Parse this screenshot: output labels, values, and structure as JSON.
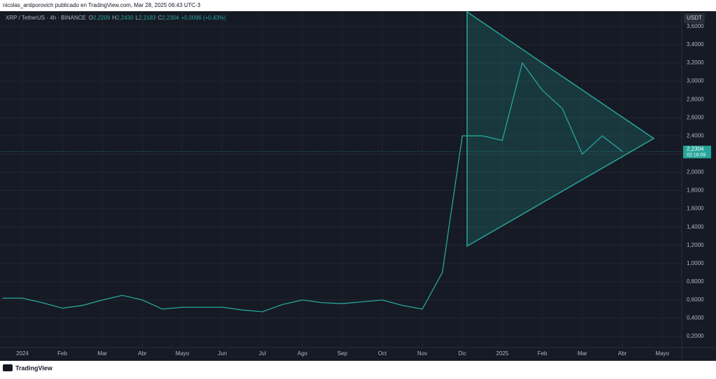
{
  "header": {
    "byline": "nicolas_antiporovich publicado en TradingView.com, Mar 28, 2025 06:43 UTC-3"
  },
  "footer": {
    "brand": "TradingView"
  },
  "chart_data": {
    "type": "line",
    "title": "XRP / TetherUS · 4h · BINANCE",
    "ohlc": {
      "o_label": "O",
      "o": "2,2209",
      "h_label": "H",
      "h": "2,2430",
      "l_label": "L",
      "l": "2,2183",
      "c_label": "C",
      "c": "2,2304",
      "change": "+0,0096 (+0,43%)"
    },
    "currency": "USDT",
    "last_price": {
      "value": 2.2304,
      "label": "2,2304"
    },
    "countdown": "02:16:09",
    "color": "#26a69a",
    "categories": [
      null,
      "2024",
      null,
      "Feb",
      null,
      "Mar",
      null,
      "Abr",
      null,
      "Mayo",
      null,
      "Jun",
      null,
      "Jul",
      null,
      "Ago",
      null,
      "Sep",
      null,
      "Oct",
      null,
      "Nov",
      null,
      "Dic",
      null,
      "2025",
      null,
      "Feb",
      null,
      "Mar",
      null,
      "Abr",
      null,
      "Mayo",
      null
    ],
    "values": [
      0.62,
      0.62,
      0.57,
      0.51,
      0.54,
      0.6,
      0.65,
      0.6,
      0.5,
      0.52,
      0.52,
      0.52,
      0.49,
      0.47,
      0.55,
      0.6,
      0.57,
      0.56,
      0.58,
      0.6,
      0.54,
      0.5,
      0.9,
      2.4,
      2.4,
      2.35,
      3.2,
      2.9,
      2.7,
      2.2,
      2.4,
      2.23,
      null,
      null,
      null
    ],
    "ylim": [
      -0.06,
      3.76
    ],
    "yticks": [
      {
        "value": 0.2,
        "label": "0,2000"
      },
      {
        "value": 0.4,
        "label": "0,4000"
      },
      {
        "value": 0.6,
        "label": "0,6000"
      },
      {
        "value": 0.8,
        "label": "0,8000"
      },
      {
        "value": 1.0,
        "label": "1,0000"
      },
      {
        "value": 1.2,
        "label": "1,2000"
      },
      {
        "value": 1.4,
        "label": "1,4000"
      },
      {
        "value": 1.6,
        "label": "1,6000"
      },
      {
        "value": 1.8,
        "label": "1,8000"
      },
      {
        "value": 2.0,
        "label": "2,0000"
      },
      {
        "value": 2.2,
        "label": "2,2000"
      },
      {
        "value": 2.4,
        "label": "2,4000"
      },
      {
        "value": 2.6,
        "label": "2,6000"
      },
      {
        "value": 2.8,
        "label": "2,8000"
      },
      {
        "value": 3.0,
        "label": "3,0000"
      },
      {
        "value": 3.2,
        "label": "3,2000"
      },
      {
        "value": 3.4,
        "label": "3,4000"
      },
      {
        "value": 3.6,
        "label": "3,6000"
      }
    ],
    "grid": true
  }
}
